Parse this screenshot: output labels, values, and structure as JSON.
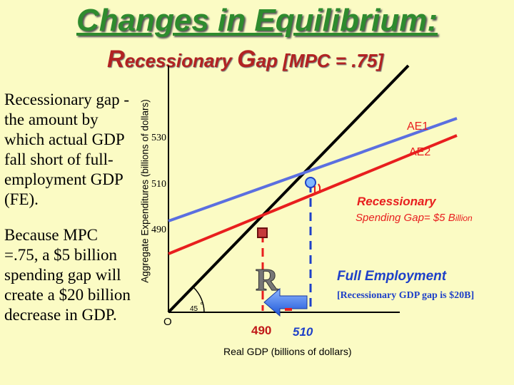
{
  "slide": {
    "title": "Changes in Equilibrium:",
    "subtitle_r": "R",
    "subtitle_rest1": "ecessionary ",
    "subtitle_g": "G",
    "subtitle_rest2": "ap [MPC = .75]"
  },
  "text": {
    "definition": "Recessionary gap - the amount by which actual GDP fall short of full-employment GDP (FE).",
    "explanation": "Because MPC =.75, a $5 billion spending gap will create a $20 billion decrease in GDP."
  },
  "graph": {
    "y_axis_label": "Aggregate Expenditures (billions of dollars)",
    "x_axis_label": "Real GDP (billions of dollars)",
    "origin_label": "O",
    "angle_label": "45",
    "degree_symbol": "°",
    "y_ticks": [
      "530",
      "510",
      "490"
    ],
    "x_ticks": [
      "490",
      "510"
    ],
    "line_labels": {
      "ae1": "AE1",
      "ae2": "AE2"
    },
    "recessionary_label": "Recessionary",
    "spending_gap_prefix": "Spending Gap= $5 B",
    "spending_gap_suffix": "illion",
    "full_employment_label": "Full Employment",
    "gdp_gap_label": "[Recessionary GDP gap is $20B]",
    "marker_letter": "R",
    "colors": {
      "ae1": "#5b6fe0",
      "ae2": "#e81e1e",
      "guide_red": "#e81e1e",
      "guide_blue": "#1e40c8",
      "arrow": "#1e6be8",
      "axis": "#000000"
    }
  }
}
